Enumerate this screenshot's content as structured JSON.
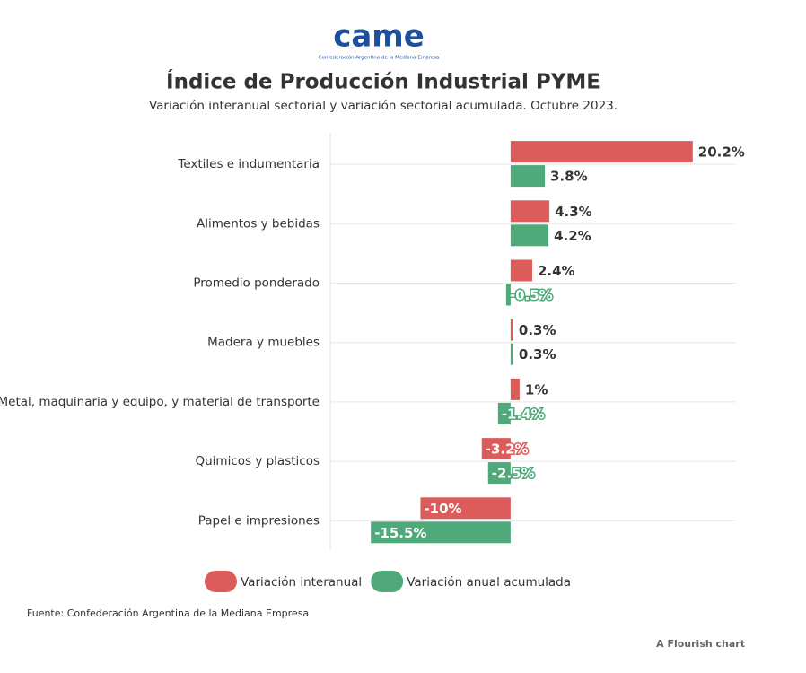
{
  "logo": {
    "text": "came",
    "caption": "Confederación Argentina de la Mediana Empresa"
  },
  "chart_data": {
    "type": "hbar",
    "title": "Índice de Producción Industrial PYME",
    "subtitle": "Variación interanual sectorial y variación sectorial acumulada. Octubre 2023.",
    "categories": [
      "Textiles e indumentaria",
      "Alimentos y bebidas",
      "Promedio ponderado",
      "Madera y muebles",
      "Metal, maquinaria y equipo, y material de transporte",
      "Quimicos y plasticos",
      "Papel e impresiones"
    ],
    "series": [
      {
        "name": "Variación interanual",
        "color": "#dc5c5c",
        "values": [
          20.2,
          4.3,
          2.4,
          0.3,
          1,
          -3.2,
          -10
        ],
        "value_labels": [
          "20.2%",
          "4.3%",
          "2.4%",
          "0.3%",
          "1%",
          "-3.2%",
          "-10%"
        ]
      },
      {
        "name": "Variación anual acumulada",
        "color": "#4fa97a",
        "values": [
          3.8,
          4.2,
          -0.5,
          0.3,
          -1.4,
          -2.5,
          -15.5
        ],
        "value_labels": [
          "3.8%",
          "4.2%",
          "-0.5%",
          "0.3%",
          "-1.4%",
          "-2.5%",
          "-15.5%"
        ]
      }
    ],
    "xlim": [
      -20,
      25
    ],
    "grid": true,
    "legend": "bottom",
    "source": "Fuente: Confederación Argentina de la Mediana Empresa",
    "credit": "A Flourish chart"
  }
}
